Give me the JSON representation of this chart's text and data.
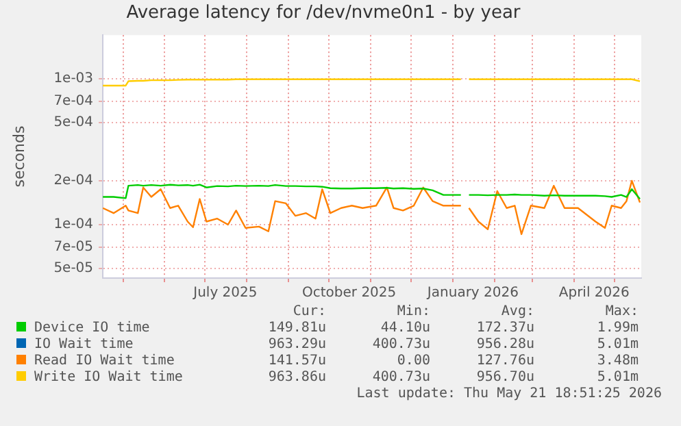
{
  "chart_data": {
    "type": "line",
    "title": "Average latency for /dev/nvme0n1 - by year",
    "ylabel": "seconds",
    "x": [
      "2025-04-16",
      "2025-04-24",
      "2025-05-03",
      "2025-05-05",
      "2025-05-12",
      "2025-05-16",
      "2025-05-22",
      "2025-05-29",
      "2025-06-05",
      "2025-06-11",
      "2025-06-18",
      "2025-06-22",
      "2025-06-27",
      "2025-07-02",
      "2025-07-10",
      "2025-07-18",
      "2025-07-24",
      "2025-07-31",
      "2025-08-10",
      "2025-08-17",
      "2025-08-22",
      "2025-08-30",
      "2025-09-06",
      "2025-09-14",
      "2025-09-21",
      "2025-09-26",
      "2025-10-02",
      "2025-10-10",
      "2025-10-18",
      "2025-10-26",
      "2025-11-05",
      "2025-11-13",
      "2025-11-18",
      "2025-11-25",
      "2025-12-03",
      "2025-12-10",
      "2025-12-17",
      "2025-12-25",
      "2026-01-07",
      "2026-01-10",
      "2026-01-13",
      "2026-01-20",
      "2026-01-27",
      "2026-02-03",
      "2026-02-10",
      "2026-02-16",
      "2026-02-21",
      "2026-02-28",
      "2026-03-10",
      "2026-03-17",
      "2026-03-25",
      "2026-04-04",
      "2026-04-17",
      "2026-04-24",
      "2026-04-29",
      "2026-05-06",
      "2026-05-10",
      "2026-05-14",
      "2026-05-20"
    ],
    "series": [
      {
        "name": "Device IO time",
        "color": "#00cc00",
        "values": [
          0.000155,
          0.000155,
          0.000152,
          0.000185,
          0.000187,
          0.000185,
          0.000187,
          0.000185,
          0.000188,
          0.000186,
          0.000187,
          0.000185,
          0.000188,
          0.00018,
          0.000184,
          0.000183,
          0.000185,
          0.000184,
          0.000185,
          0.000184,
          0.000187,
          0.000184,
          0.000184,
          0.000183,
          0.000183,
          0.000182,
          0.000178,
          0.000177,
          0.000177,
          0.000178,
          0.000178,
          0.000179,
          0.000177,
          0.000178,
          0.000176,
          0.000177,
          0.000172,
          0.00016,
          0.00016,
          null,
          0.00016,
          0.00016,
          0.000159,
          0.00016,
          0.00016,
          0.000161,
          0.00016,
          0.00016,
          0.000158,
          0.000159,
          0.000158,
          0.000158,
          0.000158,
          0.000157,
          0.000155,
          0.00016,
          0.000155,
          0.000175,
          0.00015
        ]
      },
      {
        "name": "IO Wait time",
        "color": "#0066b3",
        "values": [
          null,
          null,
          null,
          null,
          null,
          null,
          null,
          null,
          null,
          null,
          null,
          null,
          null,
          null,
          null,
          null,
          null,
          null,
          null,
          null,
          null,
          null,
          null,
          null,
          null,
          null,
          null,
          null,
          null,
          null,
          null,
          null,
          null,
          null,
          null,
          null,
          null,
          null,
          null,
          null,
          null,
          null,
          null,
          null,
          null,
          null,
          null,
          null,
          null,
          null,
          null,
          null,
          null,
          null,
          null,
          null,
          null,
          null,
          null
        ]
      },
      {
        "name": "Read IO Wait time",
        "color": "#ff8000",
        "values": [
          0.00013,
          0.00012,
          0.000135,
          0.000125,
          0.00012,
          0.00018,
          0.000155,
          0.000175,
          0.00013,
          0.000135,
          0.000105,
          9.6e-05,
          0.00015,
          0.000105,
          0.00011,
          0.0001,
          0.000125,
          9.5e-05,
          9.7e-05,
          9e-05,
          0.000145,
          0.00014,
          0.000115,
          0.00012,
          0.00011,
          0.000175,
          0.00012,
          0.00013,
          0.000135,
          0.00013,
          0.000135,
          0.00018,
          0.00013,
          0.000125,
          0.000135,
          0.00018,
          0.000145,
          0.000135,
          0.000135,
          null,
          0.00013,
          0.000105,
          9.3e-05,
          0.00017,
          0.00013,
          0.000135,
          8.6e-05,
          0.000135,
          0.00013,
          0.000185,
          0.00013,
          0.00013,
          0.000105,
          9.5e-05,
          0.000135,
          0.00013,
          0.000145,
          0.0002,
          0.000142
        ]
      },
      {
        "name": "Write IO Wait time",
        "color": "#ffcc00",
        "values": [
          0.0009,
          0.0009,
          0.0009,
          0.000965,
          0.00097,
          0.00097,
          0.00098,
          0.00098,
          0.00098,
          0.000985,
          0.00099,
          0.00099,
          0.00099,
          0.00099,
          0.00099,
          0.00099,
          0.000995,
          0.000995,
          0.000995,
          0.000995,
          0.000995,
          0.000995,
          0.000995,
          0.000995,
          0.000995,
          0.000995,
          0.000995,
          0.000995,
          0.000995,
          0.000995,
          0.000995,
          0.000995,
          0.000995,
          0.000995,
          0.000995,
          0.000995,
          0.000995,
          0.000995,
          0.000995,
          null,
          0.000995,
          0.000995,
          0.000995,
          0.000995,
          0.000995,
          0.000995,
          0.000995,
          0.000995,
          0.000995,
          0.000995,
          0.000995,
          0.000995,
          0.000995,
          0.000995,
          0.000995,
          0.000995,
          0.000995,
          0.000995,
          0.000964
        ]
      }
    ],
    "xlim": [
      "2025-04-16",
      "2026-05-21"
    ],
    "xticks": [
      {
        "value": "2025-05-01",
        "label": null
      },
      {
        "value": "2025-06-01",
        "label": null
      },
      {
        "value": "2025-07-01",
        "label": null
      },
      {
        "value": "2025-07-16",
        "label": "July 2025"
      },
      {
        "value": "2025-08-01",
        "label": null
      },
      {
        "value": "2025-09-01",
        "label": null
      },
      {
        "value": "2025-10-01",
        "label": null
      },
      {
        "value": "2025-10-16",
        "label": "October 2025"
      },
      {
        "value": "2025-11-01",
        "label": null
      },
      {
        "value": "2025-12-01",
        "label": null
      },
      {
        "value": "2026-01-01",
        "label": null
      },
      {
        "value": "2026-01-16",
        "label": "January 2026"
      },
      {
        "value": "2026-02-01",
        "label": null
      },
      {
        "value": "2026-03-01",
        "label": null
      },
      {
        "value": "2026-04-01",
        "label": null
      },
      {
        "value": "2026-04-16",
        "label": "April 2026"
      },
      {
        "value": "2026-05-01",
        "label": null
      }
    ],
    "ylim": [
      4.3e-05,
      0.002
    ],
    "yticks": [
      {
        "value": 5e-05,
        "label": "5e-05"
      },
      {
        "value": 7e-05,
        "label": "7e-05"
      },
      {
        "value": 0.0001,
        "label": "1e-04"
      },
      {
        "value": 0.0002,
        "label": "2e-04"
      },
      {
        "value": 0.0005,
        "label": "5e-04"
      },
      {
        "value": 0.0007,
        "label": "7e-04"
      },
      {
        "value": 0.001,
        "label": "1e-03"
      }
    ],
    "log": "y",
    "grid": true,
    "legend": "bottom",
    "marker": "none",
    "annotations": [
      "Cur:",
      "Min:",
      "Avg:",
      "Max:",
      "149.81u",
      "44.10u",
      "172.37u",
      "1.99m",
      "963.29u",
      "400.73u",
      "956.28u",
      "5.01m",
      "141.57u",
      "0.00",
      "127.76u",
      "3.48m",
      "963.86u",
      "400.73u",
      "956.70u",
      "5.01m",
      "Last update: Thu May 21 18:51:25 2026"
    ]
  }
}
